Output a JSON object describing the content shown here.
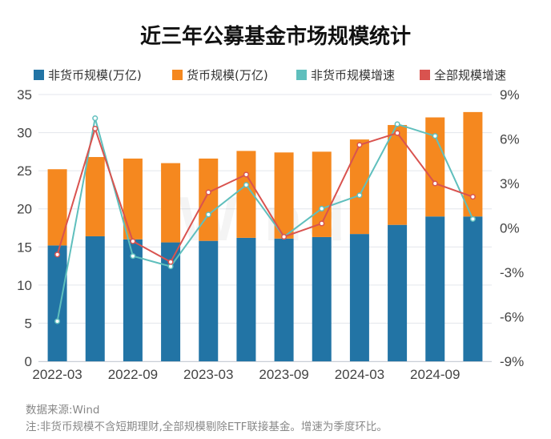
{
  "chart_data": {
    "type": "bar",
    "title": "近三年公募基金市场规模统计",
    "stacked": true,
    "legend": [
      "非货币规模(万亿)",
      "货币规模(万亿)",
      "非货币规模增速",
      "全部规模增速"
    ],
    "x_tick_labels": [
      "2022-03",
      "2022-09",
      "2023-03",
      "2023-09",
      "2024-03",
      "2024-09"
    ],
    "categories": [
      "2022-03",
      "2022-06",
      "2022-09",
      "2022-12",
      "2023-03",
      "2023-06",
      "2023-09",
      "2023-12",
      "2024-03",
      "2024-06",
      "2024-09",
      "2024-12"
    ],
    "series": [
      {
        "name": "非货币规模(万亿)",
        "kind": "bar",
        "axis": "left",
        "color": "#2274a5",
        "values": [
          15.2,
          16.4,
          16.0,
          15.6,
          15.8,
          16.2,
          16.1,
          16.3,
          16.7,
          17.9,
          19.0,
          19.0
        ]
      },
      {
        "name": "货币规模(万亿)",
        "kind": "bar",
        "axis": "left",
        "color": "#f5881f",
        "values": [
          10.0,
          10.4,
          10.6,
          10.4,
          10.8,
          11.4,
          11.3,
          11.2,
          12.4,
          13.1,
          13.0,
          13.7
        ]
      },
      {
        "name": "非货币规模增速",
        "kind": "line",
        "axis": "right",
        "unit": "%",
        "color": "#5fbfbd",
        "values": [
          -6.3,
          7.4,
          -1.9,
          -2.6,
          0.9,
          2.9,
          -0.6,
          1.3,
          2.2,
          7.0,
          6.2,
          0.6
        ]
      },
      {
        "name": "全部规模增速",
        "kind": "line",
        "axis": "right",
        "unit": "%",
        "color": "#d9534f",
        "values": [
          -1.8,
          6.7,
          -0.9,
          -2.3,
          2.4,
          3.6,
          -0.6,
          0.3,
          5.6,
          6.4,
          3.0,
          2.1
        ]
      }
    ],
    "y_left": {
      "min": 0,
      "max": 35,
      "ticks": [
        0,
        5,
        10,
        15,
        20,
        25,
        30,
        35
      ]
    },
    "y_right": {
      "min": -9,
      "max": 9,
      "ticks": [
        9,
        6,
        3,
        0,
        -3,
        -6,
        -9
      ],
      "tick_labels": [
        "9%",
        "6%",
        "3%",
        "0%",
        "-3%",
        "-6%",
        "-9%"
      ]
    },
    "grid": true,
    "legend_position": "top",
    "watermark": "Wind"
  },
  "source_note": "数据来源:Wind",
  "footnote": "注:非货币规模不含短期理财,全部规模剔除ETF联接基金。增速为季度环比。"
}
